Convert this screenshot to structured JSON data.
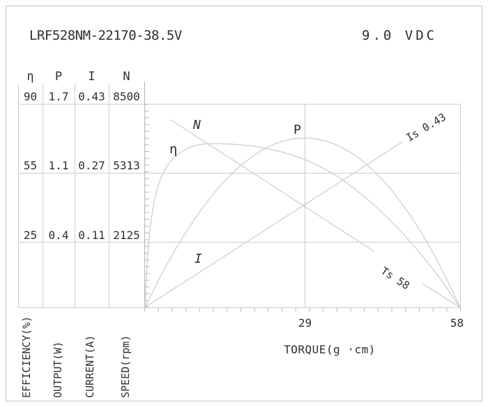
{
  "header": {
    "title": "LRF528NM-22170-38.5V",
    "voltage": "9.0 VDC"
  },
  "table": {
    "headers": [
      "η",
      "P",
      "I",
      "N"
    ],
    "rows": [
      [
        "90",
        "1.7",
        "0.43",
        "8500"
      ],
      [
        "55",
        "1.1",
        "0.27",
        "5313"
      ],
      [
        "25",
        "0.4",
        "0.11",
        "2125"
      ]
    ],
    "axis_labels": [
      "EFFICIENCY(%)",
      "OUTPUT(W)",
      "CURRENT(A)",
      "SPEED(rpm)"
    ]
  },
  "chart": {
    "curve_labels": {
      "eta": "η",
      "speed": "N",
      "power": "P",
      "current": "I"
    },
    "stall_current_label": "Is 0.43",
    "stall_torque_label": "Ts 58",
    "x_tick_mid": "29",
    "x_tick_end": "58",
    "x_axis_label": "TORQUE(g ·cm)"
  },
  "chart_data": {
    "type": "line",
    "title": "LRF528NM-22170-38.5V",
    "subtitle": "9.0 VDC",
    "xlabel": "TORQUE(g ·cm)",
    "x_range": [
      0,
      58
    ],
    "x_ticks": [
      29,
      58
    ],
    "grid": true,
    "y_axes": [
      {
        "name": "EFFICIENCY(%)",
        "symbol": "η",
        "tick_values": [
          90,
          55,
          25
        ]
      },
      {
        "name": "OUTPUT(W)",
        "symbol": "P",
        "tick_values": [
          1.7,
          1.1,
          0.4
        ]
      },
      {
        "name": "CURRENT(A)",
        "symbol": "I",
        "tick_values": [
          0.43,
          0.27,
          0.11
        ]
      },
      {
        "name": "SPEED(rpm)",
        "symbol": "N",
        "tick_values": [
          8500,
          5313,
          2125
        ]
      }
    ],
    "series": [
      {
        "name": "N (speed)",
        "shape": "straight-line-descending",
        "points_torque_rpm": [
          [
            0,
            8500
          ],
          [
            58,
            0
          ]
        ],
        "annotation": "Ts 58"
      },
      {
        "name": "I (current)",
        "shape": "straight-line-ascending",
        "points_torque_amp": [
          [
            0,
            0.02
          ],
          [
            58,
            0.43
          ]
        ],
        "annotation": "Is 0.43"
      },
      {
        "name": "P (output)",
        "shape": "parabola",
        "points_torque_watt": [
          [
            0,
            0
          ],
          [
            29,
            1.4
          ],
          [
            58,
            0
          ]
        ]
      },
      {
        "name": "η (efficiency)",
        "shape": "peaked-curve",
        "points_torque_pct": [
          [
            0,
            0
          ],
          [
            12,
            70
          ],
          [
            58,
            0
          ]
        ]
      }
    ],
    "stall_torque_g_cm": 58,
    "stall_current_a": 0.43
  }
}
